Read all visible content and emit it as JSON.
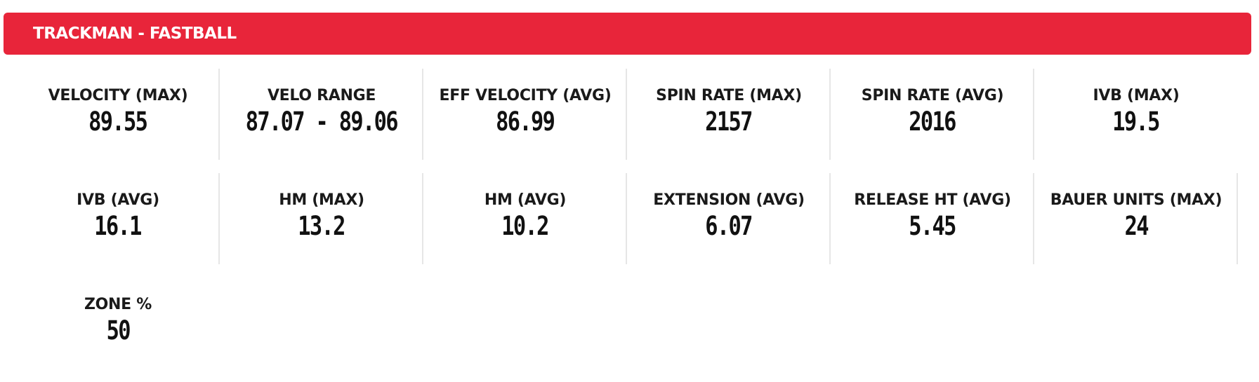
{
  "header": {
    "title": "TRACKMAN - FASTBALL"
  },
  "colors": {
    "header_background": "#e8253a",
    "header_text": "#ffffff",
    "divider": "#e6e6e6",
    "text": "#1a1a1a"
  },
  "stats": [
    {
      "label": "VELOCITY (MAX)",
      "value": "89.55"
    },
    {
      "label": "VELO RANGE",
      "value": "87.07 - 89.06"
    },
    {
      "label": "EFF VELOCITY (AVG)",
      "value": "86.99"
    },
    {
      "label": "SPIN RATE (MAX)",
      "value": "2157"
    },
    {
      "label": "SPIN RATE (AVG)",
      "value": "2016"
    },
    {
      "label": "IVB (MAX)",
      "value": "19.5"
    },
    {
      "label": "IVB (AVG)",
      "value": "16.1"
    },
    {
      "label": "HM (MAX)",
      "value": "13.2"
    },
    {
      "label": "HM (AVG)",
      "value": "10.2"
    },
    {
      "label": "EXTENSION (AVG)",
      "value": "6.07"
    },
    {
      "label": "RELEASE HT (AVG)",
      "value": "5.45"
    },
    {
      "label": "BAUER UNITS (MAX)",
      "value": "24"
    },
    {
      "label": "ZONE %",
      "value": "50"
    }
  ]
}
